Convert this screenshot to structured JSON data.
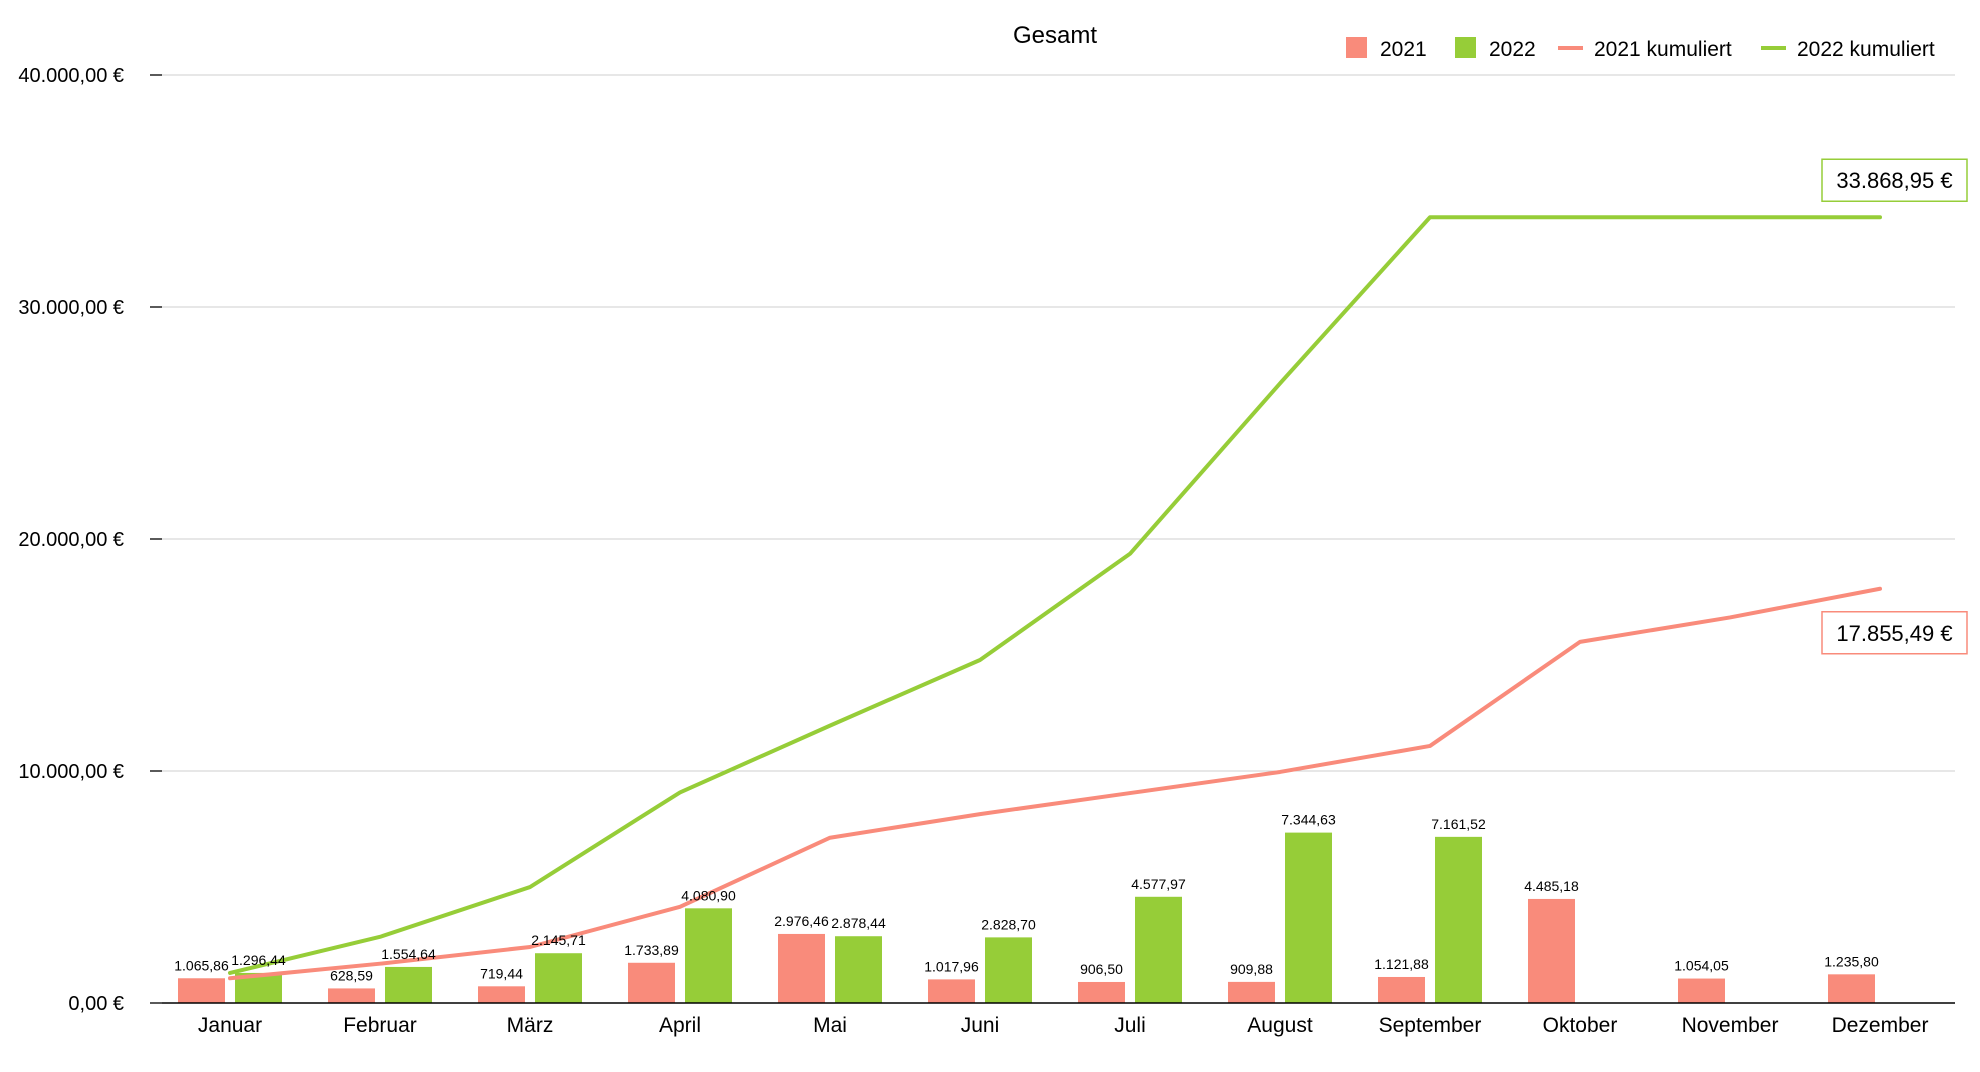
{
  "chart_data": {
    "type": "bar",
    "title": "Gesamt",
    "categories": [
      "Januar",
      "Februar",
      "März",
      "April",
      "Mai",
      "Juni",
      "Juli",
      "August",
      "September",
      "Oktober",
      "November",
      "Dezember"
    ],
    "ylim": [
      0,
      40000
    ],
    "yticks": [
      0,
      10000,
      20000,
      30000,
      40000
    ],
    "ytick_labels": [
      "0,00 €",
      "10.000,00 €",
      "20.000,00 €",
      "30.000,00 €",
      "40.000,00 €"
    ],
    "grid": true,
    "legend_position": "top-right",
    "series": [
      {
        "name": "2021",
        "kind": "bar",
        "color": "#F98B7B",
        "values": [
          1065.86,
          628.59,
          719.44,
          1733.89,
          2976.46,
          1017.96,
          906.5,
          909.88,
          1121.88,
          4485.18,
          1054.05,
          1235.8
        ],
        "labels": [
          "1.065,86",
          "628,59",
          "719,44",
          "1.733,89",
          "2.976,46",
          "1.017,96",
          "906,50",
          "909,88",
          "1.121,88",
          "4.485,18",
          "1.054,05",
          "1.235,80"
        ]
      },
      {
        "name": "2022",
        "kind": "bar",
        "color": "#96CD38",
        "values": [
          1296.44,
          1554.64,
          2145.71,
          4080.9,
          2878.44,
          2828.7,
          4577.97,
          7344.63,
          7161.52,
          null,
          null,
          null
        ],
        "labels": [
          "1.296,44",
          "1.554,64",
          "2.145,71",
          "4.080,90",
          "2.878,44",
          "2.828,70",
          "4.577,97",
          "7.344,63",
          "7.161,52",
          null,
          null,
          null
        ]
      },
      {
        "name": "2021 kumuliert",
        "kind": "line",
        "color": "#F98B7B",
        "values": [
          1065.86,
          1694.45,
          2413.89,
          4147.78,
          7124.24,
          8142.2,
          9048.7,
          9958.58,
          11080.46,
          15565.64,
          16619.69,
          17855.49
        ],
        "end_label": "17.855,49 €"
      },
      {
        "name": "2022 kumuliert",
        "kind": "line",
        "color": "#96CD38",
        "values": [
          1296.44,
          2851.08,
          4996.79,
          9077.69,
          11956.13,
          14784.83,
          19362.8,
          26707.43,
          33868.95,
          33868.95,
          33868.95,
          33868.95
        ],
        "end_label": "33.868,95 €"
      }
    ]
  }
}
